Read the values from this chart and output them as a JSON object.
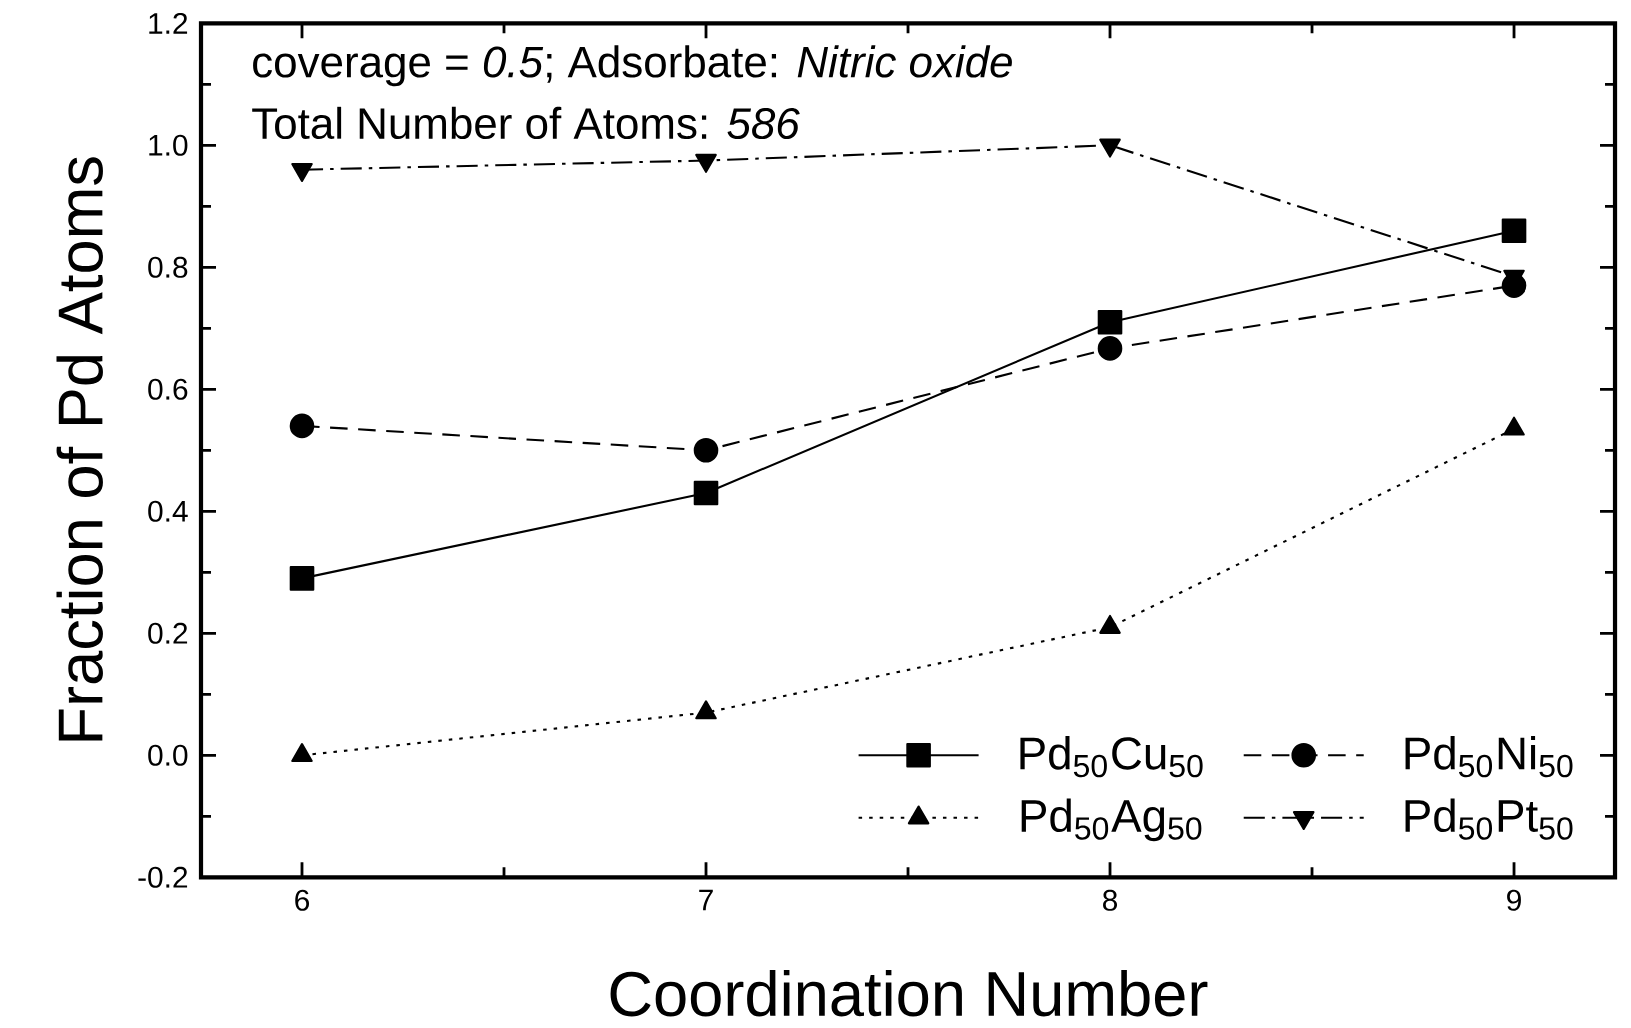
{
  "chart_data": {
    "type": "line",
    "xlabel": "Coordination Number",
    "ylabel": "Fraction of Pd Atoms",
    "x": [
      6,
      7,
      8,
      9
    ],
    "xlim": [
      5.75,
      9.25
    ],
    "xticks": [
      6,
      7,
      8,
      9
    ],
    "ylim": [
      -0.2,
      1.2
    ],
    "yticks": [
      {
        "value": -0.2,
        "label": "-0.2"
      },
      {
        "value": 0,
        "label": "0.0"
      },
      {
        "value": 0.2,
        "label": "0.2"
      },
      {
        "value": 0.4,
        "label": "0.4"
      },
      {
        "value": 0.6,
        "label": "0.6"
      },
      {
        "value": 0.8,
        "label": "0.8"
      },
      {
        "value": 1.0,
        "label": "1.0"
      },
      {
        "value": 1.2,
        "label": "1.2"
      }
    ],
    "grid": false,
    "legend": "bottom right",
    "annotations": [
      "coverage = *0.5*;  Adsorbate: *Nitric oxide*",
      "Total Number of Atoms:  *586*"
    ],
    "series": [
      {
        "name": "Pd$_{50}$Cu$_{50}$",
        "color": "#000000",
        "marker": "square",
        "line_style": "solid",
        "values": [
          0.29,
          0.43,
          0.71,
          0.86
        ]
      },
      {
        "name": "Pd$_{50}$Ni$_{50}$",
        "color": "#000000",
        "marker": "circle",
        "line_style": "dashed",
        "values": [
          0.54,
          0.5,
          0.667,
          0.77
        ]
      },
      {
        "name": "Pd$_{50}$Ag$_{50}$",
        "color": "#000000",
        "marker": "triangle",
        "line_style": "dotted",
        "values": [
          0.0,
          0.07,
          0.21,
          0.535
        ]
      },
      {
        "name": "Pd$_{50}$Pt$_{50}$",
        "color": "#000000",
        "marker": "triangle down",
        "line_style": "dashdot",
        "values": [
          0.96,
          0.975,
          1.0,
          0.785
        ]
      }
    ]
  }
}
